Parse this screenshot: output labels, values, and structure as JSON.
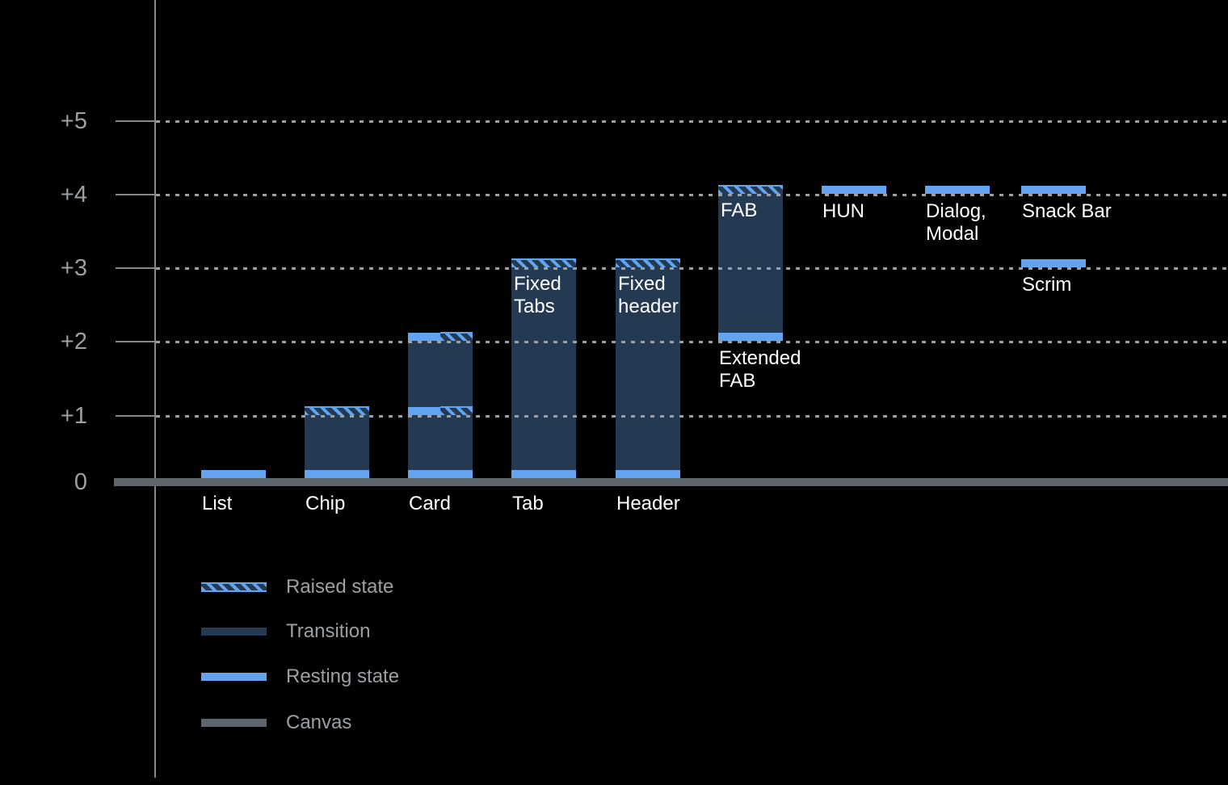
{
  "colors": {
    "background": "#000000",
    "transition": "#243a52",
    "resting": "#62a4ef",
    "canvas_line": "#5f656d",
    "gridline": "#9aa0a6",
    "axis": "#85898e",
    "tick_label": "#9ba0a5",
    "bar_label": "#ffffff",
    "legend_text": "#9ba0a5"
  },
  "chart_data": {
    "type": "bar",
    "title": "",
    "y_axis": {
      "tick_labels": [
        "0",
        "+1",
        "+2",
        "+3",
        "+4",
        "+5"
      ],
      "range": [
        0,
        5
      ],
      "gridlines": "dotted",
      "gridline_levels": [
        1,
        2,
        3,
        4,
        5
      ]
    },
    "legend": [
      {
        "style": "raised",
        "label": "Raised state"
      },
      {
        "style": "transition",
        "label": "Transition"
      },
      {
        "style": "resting",
        "label": "Resting state"
      },
      {
        "style": "canvas",
        "label": "Canvas"
      }
    ],
    "bars": [
      {
        "id": "list",
        "x_index": 0,
        "label": [
          "List"
        ],
        "label_level": 0,
        "segments": [
          {
            "type": "resting",
            "level": 0
          }
        ]
      },
      {
        "id": "chip",
        "x_index": 1,
        "label": [
          "Chip"
        ],
        "label_level": 0,
        "segments": [
          {
            "type": "transition",
            "from": 0,
            "to": 1
          },
          {
            "type": "resting",
            "level": 0
          },
          {
            "type": "raised",
            "level": 1,
            "span": "full"
          }
        ]
      },
      {
        "id": "card",
        "x_index": 2,
        "label": [
          "Card"
        ],
        "label_level": 0,
        "segments": [
          {
            "type": "transition",
            "from": 0,
            "to": 2
          },
          {
            "type": "resting",
            "level": 0
          },
          {
            "type": "resting",
            "level": 1,
            "span": "left"
          },
          {
            "type": "raised",
            "level": 1,
            "span": "right"
          },
          {
            "type": "resting",
            "level": 2,
            "span": "left"
          },
          {
            "type": "raised",
            "level": 2,
            "span": "right"
          }
        ]
      },
      {
        "id": "tab",
        "x_index": 3,
        "label": [
          "Tab"
        ],
        "label_level": 0,
        "inner_label": [
          "Fixed",
          "Tabs"
        ],
        "inner_label_level": 3,
        "segments": [
          {
            "type": "transition",
            "from": 0,
            "to": 3
          },
          {
            "type": "resting",
            "level": 0
          },
          {
            "type": "raised",
            "level": 3,
            "span": "full"
          }
        ]
      },
      {
        "id": "header",
        "x_index": 4,
        "label": [
          "Header"
        ],
        "label_level": 0,
        "inner_label": [
          "Fixed",
          "header"
        ],
        "inner_label_level": 3,
        "segments": [
          {
            "type": "transition",
            "from": 0,
            "to": 3
          },
          {
            "type": "resting",
            "level": 0
          },
          {
            "type": "raised",
            "level": 3,
            "span": "full"
          }
        ]
      },
      {
        "id": "fab",
        "x_index": 5,
        "label": [
          "Extended",
          "FAB"
        ],
        "label_level": 2,
        "inner_label": [
          "FAB"
        ],
        "inner_label_level": 4,
        "segments": [
          {
            "type": "transition",
            "from": 2,
            "to": 4
          },
          {
            "type": "resting",
            "level": 2
          },
          {
            "type": "raised",
            "level": 4,
            "span": "full"
          }
        ]
      },
      {
        "id": "hun",
        "x_index": 6,
        "label": [
          "HUN"
        ],
        "label_level": 4,
        "segments": [
          {
            "type": "resting",
            "level": 4
          }
        ]
      },
      {
        "id": "dialog-modal",
        "x_index": 7,
        "label": [
          "Dialog,",
          "Modal"
        ],
        "label_level": 4,
        "segments": [
          {
            "type": "resting",
            "level": 4
          }
        ]
      },
      {
        "id": "snack-bar",
        "x_index": 8,
        "label": [
          "Snack Bar"
        ],
        "label_level": 4,
        "segments": [
          {
            "type": "resting",
            "level": 4
          }
        ]
      },
      {
        "id": "scrim",
        "x_index": 8,
        "label": [
          "Scrim"
        ],
        "label_level": 3,
        "segments": [
          {
            "type": "resting",
            "level": 3
          }
        ]
      }
    ]
  }
}
